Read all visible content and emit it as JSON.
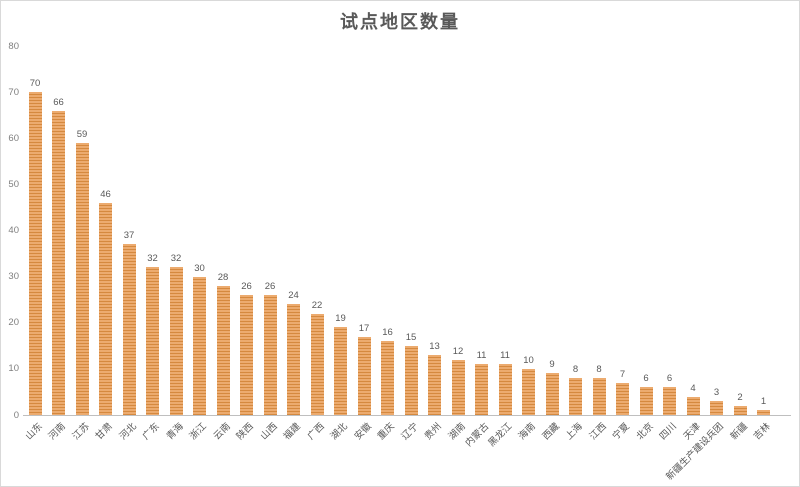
{
  "window": {
    "background": "#ffffff",
    "border_color": "#d9d9d9"
  },
  "chart_data": {
    "type": "bar",
    "title": "试点地区数量",
    "categories": [
      "山东",
      "河南",
      "江苏",
      "甘肃",
      "河北",
      "广东",
      "青海",
      "浙江",
      "云南",
      "陕西",
      "山西",
      "福建",
      "广西",
      "湖北",
      "安徽",
      "重庆",
      "辽宁",
      "贵州",
      "湖南",
      "内蒙古",
      "黑龙江",
      "海南",
      "西藏",
      "上海",
      "江西",
      "宁夏",
      "北京",
      "四川",
      "天津",
      "新疆生产建设兵团",
      "新疆",
      "吉林"
    ],
    "values": [
      70,
      66,
      59,
      46,
      37,
      32,
      32,
      30,
      28,
      26,
      26,
      24,
      22,
      19,
      17,
      16,
      15,
      13,
      12,
      11,
      11,
      10,
      9,
      8,
      8,
      7,
      6,
      6,
      4,
      3,
      2,
      1
    ],
    "data_labels": "above-bars",
    "xlabel": "",
    "ylabel": "",
    "ylim": [
      0,
      80
    ],
    "ytick_step": 10,
    "grid": false,
    "legend": "none",
    "x_label_rotation_deg": -45,
    "colors": {
      "bar_stripe_light": "#ECAB6F",
      "bar_stripe_dark": "#D5893F",
      "title": "#595959",
      "data_label": "#595959",
      "y_tick_label": "#7F7F7F",
      "x_tick_label": "#595959",
      "axis_line": "#BFBFBF"
    }
  }
}
